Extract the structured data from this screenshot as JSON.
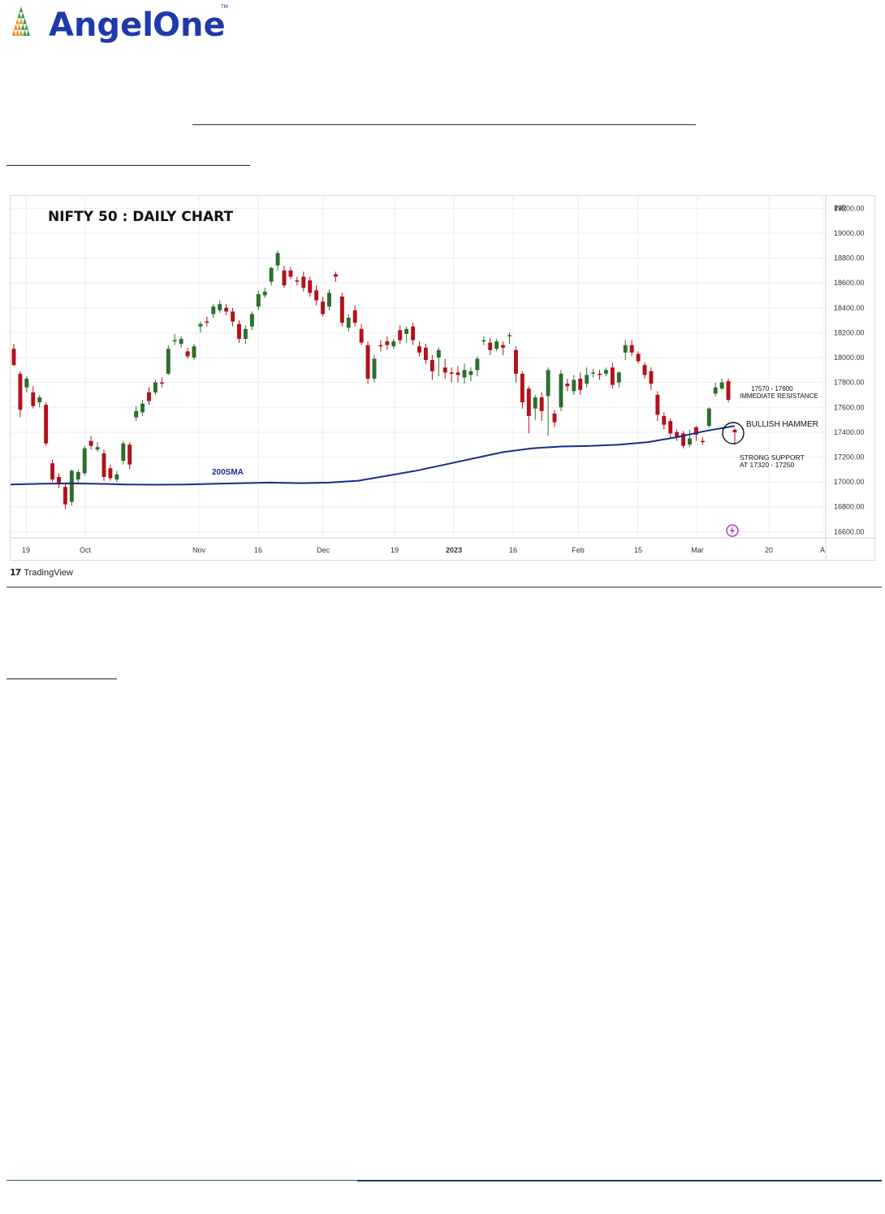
{
  "brand": {
    "name_part1": "Angel",
    "name_part2": "One",
    "tm": "TM",
    "color_primary": "#1f3aa8",
    "color_accent": "#f28c1e",
    "color_green": "#2e9a3f"
  },
  "tradingview": {
    "label": "TradingView",
    "icon": "tradingview-logo-icon"
  },
  "chart_data": {
    "type": "candlestick",
    "title": "NIFTY 50 : DAILY CHART",
    "currency_label": "INR",
    "y_ticks": [
      "19200.00",
      "19000.00",
      "18800.00",
      "18600.00",
      "18400.00",
      "18200.00",
      "18000.00",
      "17800.00",
      "17600.00",
      "17400.00",
      "17200.00",
      "17000.00",
      "16800.00",
      "16600.00"
    ],
    "ylim": [
      16550,
      19300
    ],
    "x_labels": [
      "19",
      "Oct",
      "Nov",
      "16",
      "Dec",
      "19",
      "2023",
      "16",
      "Feb",
      "15",
      "Mar",
      "20",
      "A"
    ],
    "up_color": "#2b6f2b",
    "down_color": "#b2111c",
    "sma_color": "#1a2c8a",
    "sma_label": "200SMA",
    "sma_values": [
      16980,
      16985,
      16988,
      16985,
      16980,
      16978,
      16980,
      16985,
      16990,
      16995,
      16990,
      16995,
      17010,
      17050,
      17090,
      17140,
      17190,
      17240,
      17270,
      17285,
      17290,
      17300,
      17320,
      17360,
      17410,
      17450
    ],
    "annotations": [
      {
        "text_line1": "17570 - 17600",
        "text_line2": "IMMEDIATE RESISTANCE"
      },
      {
        "text_line1": "BULLISH HAMMER",
        "text_line2": ""
      },
      {
        "text_line1": "STRONG SUPPORT",
        "text_line2": "AT 17320 - 17250"
      }
    ],
    "candles": [
      [
        18070,
        17940,
        18110,
        17930
      ],
      [
        17870,
        17580,
        17890,
        17520
      ],
      [
        17760,
        17830,
        17850,
        17720
      ],
      [
        17720,
        17610,
        17770,
        17590
      ],
      [
        17640,
        17680,
        17700,
        17600
      ],
      [
        17620,
        17310,
        17640,
        17290
      ],
      [
        17150,
        17020,
        17180,
        17000
      ],
      [
        17040,
        16980,
        17070,
        16950
      ],
      [
        16960,
        16820,
        16990,
        16780
      ],
      [
        16840,
        17090,
        17100,
        16810
      ],
      [
        17020,
        17080,
        17100,
        16990
      ],
      [
        17070,
        17270,
        17290,
        17050
      ],
      [
        17330,
        17290,
        17370,
        17260
      ],
      [
        17260,
        17280,
        17320,
        17240
      ],
      [
        17230,
        17040,
        17260,
        17010
      ],
      [
        17110,
        17030,
        17140,
        17010
      ],
      [
        17020,
        17060,
        17090,
        17000
      ],
      [
        17170,
        17310,
        17330,
        17140
      ],
      [
        17300,
        17140,
        17320,
        17100
      ],
      [
        17520,
        17570,
        17610,
        17490
      ],
      [
        17560,
        17630,
        17660,
        17530
      ],
      [
        17720,
        17650,
        17760,
        17620
      ],
      [
        17720,
        17800,
        17820,
        17700
      ],
      [
        17800,
        17790,
        17840,
        17760
      ],
      [
        17870,
        18070,
        18100,
        17860
      ],
      [
        18130,
        18140,
        18190,
        18100
      ],
      [
        18110,
        18150,
        18170,
        18080
      ],
      [
        18050,
        18010,
        18080,
        17990
      ],
      [
        18000,
        18090,
        18110,
        17980
      ],
      [
        18250,
        18270,
        18290,
        18200
      ],
      [
        18290,
        18280,
        18330,
        18250
      ],
      [
        18350,
        18410,
        18430,
        18320
      ],
      [
        18380,
        18430,
        18460,
        18360
      ],
      [
        18400,
        18370,
        18430,
        18340
      ],
      [
        18370,
        18290,
        18400,
        18250
      ],
      [
        18270,
        18150,
        18300,
        18120
      ],
      [
        18150,
        18230,
        18260,
        18110
      ],
      [
        18250,
        18350,
        18370,
        18220
      ],
      [
        18410,
        18510,
        18540,
        18380
      ],
      [
        18500,
        18530,
        18560,
        18480
      ],
      [
        18610,
        18720,
        18730,
        18580
      ],
      [
        18740,
        18840,
        18860,
        18700
      ],
      [
        18700,
        18580,
        18740,
        18560
      ],
      [
        18700,
        18650,
        18730,
        18630
      ],
      [
        18620,
        18610,
        18650,
        18580
      ],
      [
        18650,
        18560,
        18690,
        18530
      ],
      [
        18620,
        18520,
        18650,
        18490
      ],
      [
        18540,
        18460,
        18580,
        18420
      ],
      [
        18450,
        18350,
        18490,
        18330
      ],
      [
        18410,
        18520,
        18550,
        18380
      ],
      [
        18670,
        18650,
        18690,
        18610
      ],
      [
        18490,
        18280,
        18520,
        18250
      ],
      [
        18240,
        18320,
        18350,
        18210
      ],
      [
        18380,
        18280,
        18420,
        18250
      ],
      [
        18230,
        18120,
        18270,
        18100
      ],
      [
        18100,
        17830,
        18130,
        17790
      ],
      [
        17830,
        17990,
        18020,
        17800
      ],
      [
        18100,
        18090,
        18140,
        18050
      ],
      [
        18130,
        18100,
        18170,
        18060
      ],
      [
        18090,
        18130,
        18150,
        18070
      ],
      [
        18220,
        18140,
        18260,
        18110
      ],
      [
        18190,
        18230,
        18250,
        18120
      ],
      [
        18250,
        18140,
        18280,
        18100
      ],
      [
        18090,
        18040,
        18130,
        18010
      ],
      [
        18080,
        17980,
        18110,
        17950
      ],
      [
        17980,
        17890,
        18020,
        17820
      ],
      [
        18000,
        18060,
        18080,
        17850
      ],
      [
        17920,
        17880,
        17990,
        17830
      ],
      [
        17880,
        17870,
        17920,
        17800
      ],
      [
        17880,
        17860,
        17930,
        17800
      ],
      [
        17840,
        17900,
        17950,
        17790
      ],
      [
        17860,
        17890,
        17920,
        17810
      ],
      [
        17900,
        17990,
        18010,
        17850
      ],
      [
        18130,
        18140,
        18170,
        18100
      ],
      [
        18120,
        18060,
        18160,
        18020
      ],
      [
        18070,
        18130,
        18150,
        18050
      ],
      [
        18100,
        18080,
        18130,
        18020
      ],
      [
        18170,
        18180,
        18200,
        18110
      ],
      [
        18060,
        17870,
        18090,
        17800
      ],
      [
        17870,
        17640,
        17890,
        17590
      ],
      [
        17750,
        17530,
        17770,
        17390
      ],
      [
        17590,
        17680,
        17700,
        17500
      ],
      [
        17680,
        17570,
        17720,
        17490
      ],
      [
        17690,
        17900,
        17920,
        17370
      ],
      [
        17550,
        17480,
        17580,
        17440
      ],
      [
        17600,
        17870,
        17900,
        17570
      ],
      [
        17790,
        17770,
        17830,
        17730
      ],
      [
        17730,
        17820,
        17860,
        17700
      ],
      [
        17830,
        17740,
        17880,
        17700
      ],
      [
        17790,
        17860,
        17920,
        17760
      ],
      [
        17880,
        17880,
        17910,
        17840
      ],
      [
        17870,
        17860,
        17900,
        17820
      ],
      [
        17870,
        17900,
        17920,
        17850
      ],
      [
        17920,
        17780,
        17960,
        17750
      ],
      [
        17800,
        17880,
        17890,
        17760
      ],
      [
        18040,
        18100,
        18140,
        17980
      ],
      [
        18100,
        18040,
        18140,
        18010
      ],
      [
        18030,
        17970,
        18050,
        17950
      ],
      [
        17940,
        17860,
        17960,
        17830
      ],
      [
        17890,
        17790,
        17920,
        17740
      ],
      [
        17700,
        17540,
        17730,
        17490
      ],
      [
        17530,
        17460,
        17560,
        17420
      ],
      [
        17490,
        17390,
        17510,
        17350
      ],
      [
        17400,
        17360,
        17420,
        17330
      ],
      [
        17390,
        17290,
        17410,
        17270
      ],
      [
        17300,
        17350,
        17420,
        17280
      ],
      [
        17440,
        17380,
        17450,
        17330
      ],
      [
        17330,
        17320,
        17360,
        17300
      ],
      [
        17450,
        17590,
        17600,
        17440
      ],
      [
        17710,
        17760,
        17800,
        17690
      ],
      [
        17750,
        17800,
        17830,
        17740
      ],
      [
        17810,
        17660,
        17830,
        17640
      ],
      [
        17420,
        17400,
        17430,
        17300
      ]
    ]
  }
}
